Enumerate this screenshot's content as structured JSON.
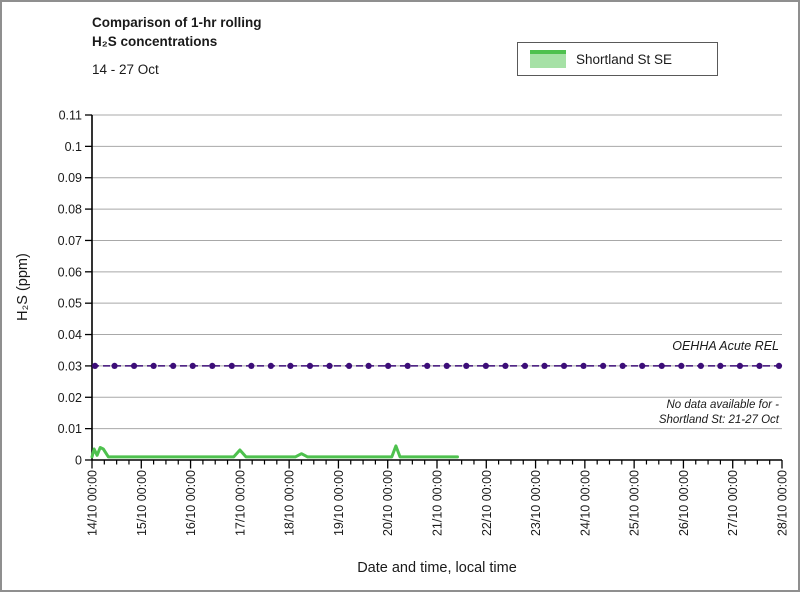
{
  "window": {
    "background": "#ffffff",
    "border_color": "#8f8f8f"
  },
  "header": {
    "title_line1": "Comparison of 1-hr rolling",
    "title_line2": "H₂S concentrations",
    "date_range": "14 - 27 Oct"
  },
  "legend": {
    "label": "Shortland St SE",
    "swatch_fill": "#a6e1a6",
    "swatch_border": "#4ec14e"
  },
  "axes": {
    "y_title": "H₂S (ppm)",
    "x_title": "Date and time, local time"
  },
  "annotations": {
    "rel_label": "OEHHA Acute REL",
    "no_data_line1": "No data available for -",
    "no_data_line2": "Shortland St: 21-27 Oct"
  },
  "chart_data": {
    "type": "line",
    "title": "Comparison of 1-hr rolling H₂S concentrations",
    "subtitle": "14 - 27 Oct",
    "xlabel": "Date and time, local time",
    "ylabel": "H₂S (ppm)",
    "ylim": [
      0,
      0.11
    ],
    "y_tick_step": 0.01,
    "y_tick_labels": [
      "0",
      "0.01",
      "0.02",
      "0.03",
      "0.04",
      "0.05",
      "0.06",
      "0.07",
      "0.08",
      "0.09",
      "0.1",
      "0.11"
    ],
    "x_tick_labels": [
      "14/10 00:00",
      "15/10 00:00",
      "16/10 00:00",
      "17/10 00:00",
      "18/10 00:00",
      "19/10 00:00",
      "20/10 00:00",
      "21/10 00:00",
      "22/10 00:00",
      "23/10 00:00",
      "24/10 00:00",
      "25/10 00:00",
      "26/10 00:00",
      "27/10 00:00",
      "28/10 00:00"
    ],
    "minor_ticks_per_day": 4,
    "grid": "horizontal",
    "gridline_color": "#a8a8a8",
    "axis_color": "#000000",
    "legend_position": "top-right",
    "series": [
      {
        "name": "Shortland St SE",
        "color": "#4ec14e",
        "points": [
          {
            "t": "14/10 00:00",
            "v": 0.001
          },
          {
            "t": "14/10 01:00",
            "v": 0.0035
          },
          {
            "t": "14/10 02:30",
            "v": 0.0015
          },
          {
            "t": "14/10 04:00",
            "v": 0.004
          },
          {
            "t": "14/10 05:30",
            "v": 0.0035
          },
          {
            "t": "14/10 08:00",
            "v": 0.001
          },
          {
            "t": "15/10 00:00",
            "v": 0.001
          },
          {
            "t": "16/10 00:00",
            "v": 0.001
          },
          {
            "t": "16/10 21:00",
            "v": 0.001
          },
          {
            "t": "17/10 00:00",
            "v": 0.0032
          },
          {
            "t": "17/10 03:00",
            "v": 0.001
          },
          {
            "t": "18/10 03:00",
            "v": 0.001
          },
          {
            "t": "18/10 06:00",
            "v": 0.002
          },
          {
            "t": "18/10 09:00",
            "v": 0.001
          },
          {
            "t": "19/10 00:00",
            "v": 0.001
          },
          {
            "t": "20/10 02:00",
            "v": 0.001
          },
          {
            "t": "20/10 04:00",
            "v": 0.0045
          },
          {
            "t": "20/10 06:00",
            "v": 0.001
          },
          {
            "t": "21/10 00:00",
            "v": 0.001
          },
          {
            "t": "21/10 10:00",
            "v": 0.001
          }
        ]
      }
    ],
    "reference_line": {
      "label": "OEHHA Acute REL",
      "value": 0.03,
      "color": "#3c0d78",
      "style": "dashed with circular markers",
      "marker_count": 36
    },
    "notes": "No data available for - Shortland St: 21-27 Oct"
  }
}
